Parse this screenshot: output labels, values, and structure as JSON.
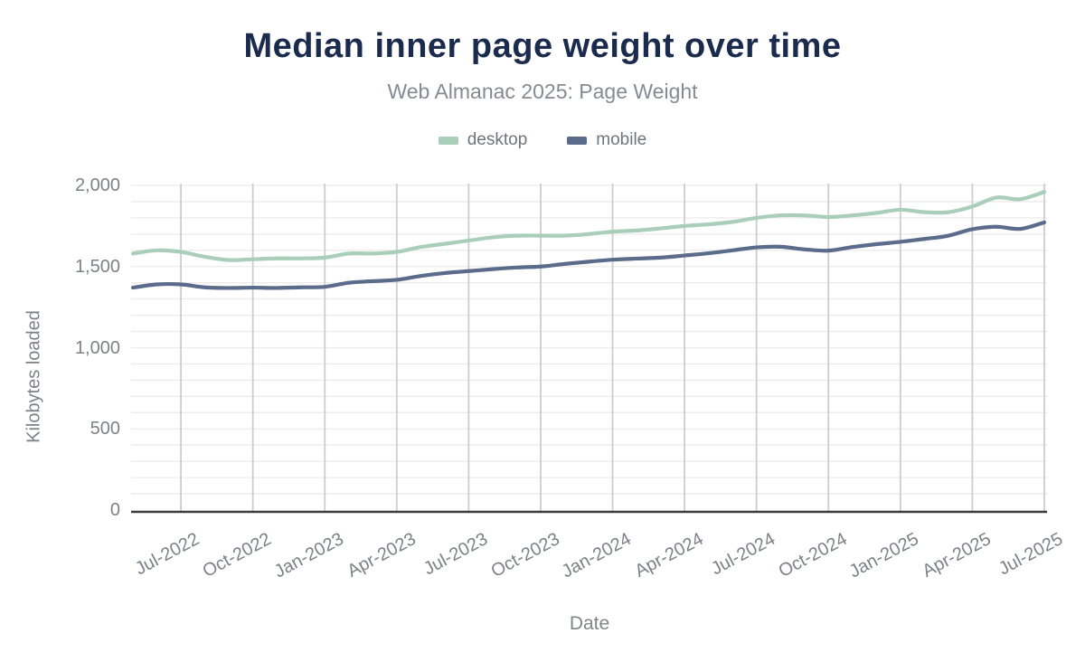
{
  "title": "Median inner page weight over time",
  "subtitle": "Web Almanac 2025: Page Weight",
  "legend": [
    {
      "label": "desktop",
      "color": "#a9ceb9"
    },
    {
      "label": "mobile",
      "color": "#5a6b8b"
    }
  ],
  "colors": {
    "title": "#1b2b4e",
    "subtitle": "#858b92",
    "tick_text": "#7c8288",
    "grid_vertical": "#cdcdcd",
    "grid_horizontal": "#ebebeb",
    "axis_line": "#3b3d40",
    "desktop_line": "#a9ceb9",
    "mobile_line": "#5a6b8b"
  },
  "chart_data": {
    "type": "line",
    "title": "Median inner page weight over time",
    "subtitle": "Web Almanac 2025: Page Weight",
    "xlabel": "Date",
    "ylabel": "Kilobytes loaded",
    "ylim": [
      0,
      2000
    ],
    "y_ticks": [
      0,
      500,
      1000,
      1500,
      2000
    ],
    "y_tick_labels": [
      "0",
      "500",
      "1,000",
      "1,500",
      "2,000"
    ],
    "y_minor_grid_step": 100,
    "grid": "on",
    "legend_position": "top-center",
    "x": [
      "May-2022",
      "Jun-2022",
      "Jul-2022",
      "Aug-2022",
      "Sep-2022",
      "Oct-2022",
      "Nov-2022",
      "Dec-2022",
      "Jan-2023",
      "Feb-2023",
      "Mar-2023",
      "Apr-2023",
      "May-2023",
      "Jun-2023",
      "Jul-2023",
      "Aug-2023",
      "Sep-2023",
      "Oct-2023",
      "Nov-2023",
      "Dec-2023",
      "Jan-2024",
      "Feb-2024",
      "Mar-2024",
      "Apr-2024",
      "May-2024",
      "Jun-2024",
      "Jul-2024",
      "Aug-2024",
      "Sep-2024",
      "Oct-2024",
      "Nov-2024",
      "Dec-2024",
      "Jan-2025",
      "Feb-2025",
      "Mar-2025",
      "Apr-2025",
      "May-2025",
      "Jun-2025",
      "Jul-2025"
    ],
    "x_tick_labels": [
      "Jul-2022",
      "Oct-2022",
      "Jan-2023",
      "Apr-2023",
      "Jul-2023",
      "Oct-2023",
      "Jan-2024",
      "Apr-2024",
      "Jul-2024",
      "Oct-2024",
      "Jan-2025",
      "Apr-2025",
      "Jul-2025"
    ],
    "x_tick_first_index": 2,
    "x_tick_index_step": 3,
    "series": [
      {
        "name": "desktop",
        "color": "#a9ceb9",
        "values": [
          1580,
          1600,
          1590,
          1560,
          1540,
          1545,
          1550,
          1550,
          1555,
          1580,
          1580,
          1590,
          1620,
          1640,
          1660,
          1680,
          1690,
          1690,
          1690,
          1700,
          1715,
          1722,
          1735,
          1750,
          1760,
          1775,
          1800,
          1815,
          1815,
          1805,
          1815,
          1830,
          1850,
          1835,
          1835,
          1870,
          1925,
          1915,
          1960
        ]
      },
      {
        "name": "mobile",
        "color": "#5a6b8b",
        "values": [
          1370,
          1390,
          1390,
          1372,
          1368,
          1370,
          1368,
          1372,
          1375,
          1400,
          1410,
          1418,
          1442,
          1460,
          1472,
          1484,
          1494,
          1500,
          1516,
          1530,
          1542,
          1549,
          1555,
          1568,
          1582,
          1600,
          1618,
          1622,
          1606,
          1598,
          1620,
          1638,
          1652,
          1670,
          1690,
          1730,
          1745,
          1732,
          1772
        ]
      }
    ]
  }
}
